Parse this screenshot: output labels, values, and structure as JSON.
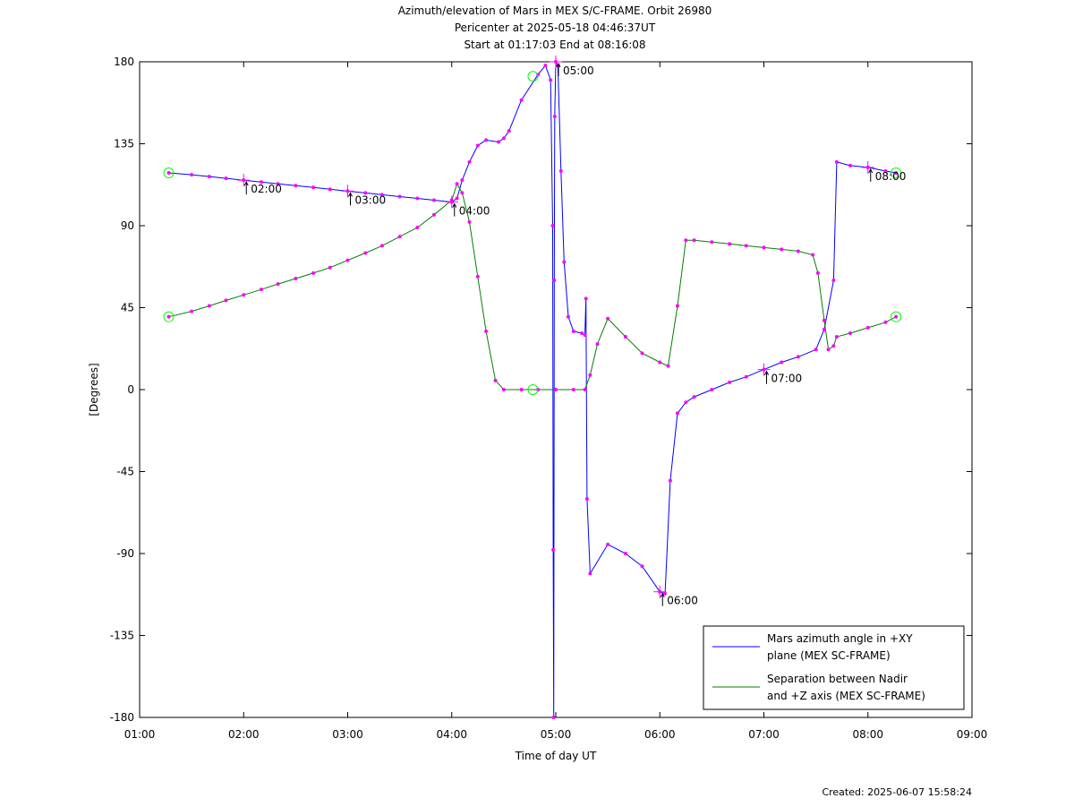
{
  "chart_data": {
    "type": "line",
    "title": [
      "Azimuth/elevation of Mars in MEX S/C-FRAME.  Orbit 26980",
      "Pericenter at 2025-05-18 04:46:37UT",
      "Start at 01:17:03 End at 08:16:08"
    ],
    "xlabel": "Time of day UT",
    "ylabel": "[Degrees]",
    "xlim": [
      1.0,
      9.0
    ],
    "ylim": [
      -180,
      180
    ],
    "xticks": [
      1,
      2,
      3,
      4,
      5,
      6,
      7,
      8,
      9
    ],
    "xtick_labels": [
      "01:00",
      "02:00",
      "03:00",
      "04:00",
      "05:00",
      "06:00",
      "07:00",
      "08:00",
      "09:00"
    ],
    "yticks": [
      180,
      135,
      90,
      45,
      0,
      -45,
      -90,
      -135,
      -180
    ],
    "ytick_labels": [
      "180",
      "135",
      "90",
      "45",
      "0",
      "-45",
      "-90",
      "-135",
      "-180"
    ],
    "grid": false,
    "legend_position": "bottom-right",
    "series": [
      {
        "name": "Mars azimuth angle in +XY plane (MEX SC-FRAME)",
        "legend_lines": [
          "Mars azimuth angle in +XY",
          "plane (MEX SC-FRAME)"
        ],
        "color": "#0000ff",
        "x": [
          1.28,
          1.5,
          1.67,
          1.83,
          2.0,
          2.17,
          2.33,
          2.5,
          2.67,
          2.83,
          3.0,
          3.17,
          3.33,
          3.5,
          3.67,
          3.83,
          4.0,
          4.05,
          4.1,
          4.17,
          4.25,
          4.33,
          4.45,
          4.5,
          4.55,
          4.67,
          4.83,
          4.9,
          4.95,
          4.97,
          4.975,
          4.98,
          4.985,
          4.99,
          5.0,
          5.02,
          5.05,
          5.08,
          5.12,
          5.17,
          5.25,
          5.28,
          5.29,
          5.3,
          5.33,
          5.5,
          5.67,
          5.83,
          6.0,
          6.05,
          6.1,
          6.17,
          6.25,
          6.33,
          6.5,
          6.67,
          6.83,
          7.0,
          7.17,
          7.33,
          7.5,
          7.58,
          7.67,
          7.7,
          7.83,
          8.0,
          8.17,
          8.27
        ],
        "y": [
          119,
          118,
          117,
          116,
          115,
          114,
          113,
          112,
          111,
          110,
          109,
          108,
          107,
          106,
          105,
          104,
          103,
          105,
          115,
          125,
          134,
          137,
          136,
          138,
          142,
          159,
          173,
          178,
          170,
          90,
          -88,
          -180,
          60,
          150,
          180,
          178,
          120,
          70,
          40,
          32,
          31,
          30,
          50,
          -60,
          -101,
          -85,
          -90,
          -97,
          -111,
          -112,
          -50,
          -13,
          -7,
          -4,
          0,
          4,
          7,
          11,
          15,
          18,
          22,
          33,
          60,
          125,
          123,
          122,
          120,
          119
        ]
      },
      {
        "name": "Separation between Nadir and +Z axis (MEX SC-FRAME)",
        "legend_lines": [
          "Separation between Nadir",
          "and +Z axis (MEX SC-FRAME)"
        ],
        "color": "#008000",
        "x": [
          1.28,
          1.5,
          1.67,
          1.83,
          2.0,
          2.17,
          2.33,
          2.5,
          2.67,
          2.83,
          3.0,
          3.17,
          3.33,
          3.5,
          3.67,
          3.83,
          4.0,
          4.05,
          4.1,
          4.17,
          4.25,
          4.33,
          4.42,
          4.5,
          4.67,
          4.83,
          5.0,
          5.17,
          5.28,
          5.33,
          5.4,
          5.5,
          5.67,
          5.83,
          6.0,
          6.08,
          6.17,
          6.25,
          6.33,
          6.5,
          6.67,
          6.83,
          7.0,
          7.17,
          7.33,
          7.47,
          7.52,
          7.58,
          7.62,
          7.67,
          7.7,
          7.83,
          8.0,
          8.17,
          8.27
        ],
        "y": [
          40,
          43,
          46,
          49,
          52,
          55,
          58,
          61,
          64,
          67,
          71,
          75,
          79,
          84,
          89,
          96,
          104,
          113,
          108,
          92,
          62,
          32,
          5,
          0,
          0,
          0,
          0,
          0,
          0,
          8,
          25,
          39,
          29,
          20,
          15,
          13,
          46,
          82,
          82,
          81,
          80,
          79,
          78,
          77,
          76,
          74,
          64,
          38,
          22,
          24,
          29,
          31,
          34,
          37,
          40
        ]
      }
    ],
    "marker_color": "#ff00ff",
    "endpoint_marker_color": "#00ff00",
    "time_annotations": [
      {
        "label": "02:00",
        "x": 2.0,
        "y": 115,
        "hour": true
      },
      {
        "label": "03:00",
        "x": 3.0,
        "y": 109,
        "hour": true
      },
      {
        "label": "04:00",
        "x": 4.0,
        "y": 103,
        "hour": true
      },
      {
        "label": "05:00",
        "x": 5.0,
        "y": 180,
        "hour": true
      },
      {
        "label": "06:00",
        "x": 6.0,
        "y": -111,
        "hour": true
      },
      {
        "label": "07:00",
        "x": 7.0,
        "y": 11,
        "hour": true
      },
      {
        "label": "08:00",
        "x": 8.0,
        "y": 122,
        "hour": true
      }
    ],
    "footer": "Created: 2025-06-07 15:58:24"
  }
}
